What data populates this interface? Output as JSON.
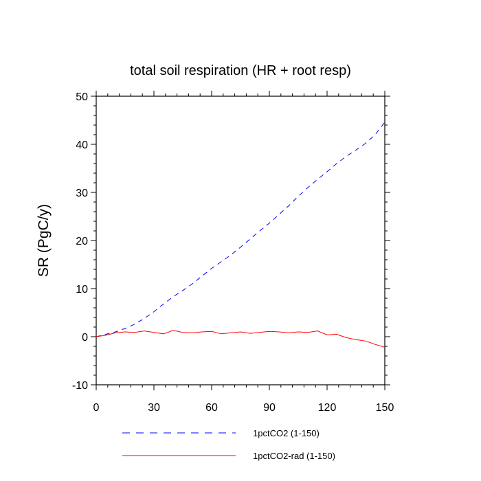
{
  "chart_data": {
    "type": "line",
    "title": "total soil respiration (HR + root resp)",
    "xlabel": "",
    "ylabel": "SR  (PgC/y)",
    "xlim": [
      0,
      150
    ],
    "ylim": [
      -10,
      50
    ],
    "xticks": [
      0,
      30,
      60,
      90,
      120,
      150
    ],
    "yticks": [
      -10,
      0,
      10,
      20,
      30,
      40,
      50
    ],
    "x": [
      0,
      5,
      10,
      15,
      20,
      25,
      30,
      35,
      40,
      45,
      50,
      55,
      60,
      65,
      70,
      75,
      80,
      85,
      90,
      95,
      100,
      105,
      110,
      115,
      120,
      125,
      130,
      135,
      140,
      145,
      150
    ],
    "series": [
      {
        "name": "1pctCO2 (1-150)",
        "color": "#0000ff",
        "style": "dashed",
        "values": [
          0,
          0.5,
          1.0,
          1.7,
          2.6,
          3.8,
          5.2,
          6.8,
          8.3,
          9.6,
          11.0,
          12.6,
          14.2,
          15.6,
          17.0,
          18.6,
          20.3,
          22.0,
          23.6,
          25.4,
          27.2,
          29.2,
          31.0,
          32.7,
          34.3,
          36.0,
          37.5,
          38.8,
          40.2,
          42.0,
          44.6
        ]
      },
      {
        "name": "1pctCO2-rad (1-150)",
        "color": "#ff0000",
        "style": "solid",
        "values": [
          0,
          0.3,
          0.8,
          1.0,
          0.9,
          1.2,
          0.9,
          0.6,
          1.3,
          0.9,
          0.8,
          1.0,
          1.1,
          0.6,
          0.8,
          1.0,
          0.7,
          0.9,
          1.1,
          1.0,
          0.8,
          1.0,
          0.9,
          1.2,
          0.4,
          0.5,
          -0.2,
          -0.6,
          -0.9,
          -1.6,
          -2.2
        ]
      }
    ],
    "legend_position": "bottom"
  }
}
